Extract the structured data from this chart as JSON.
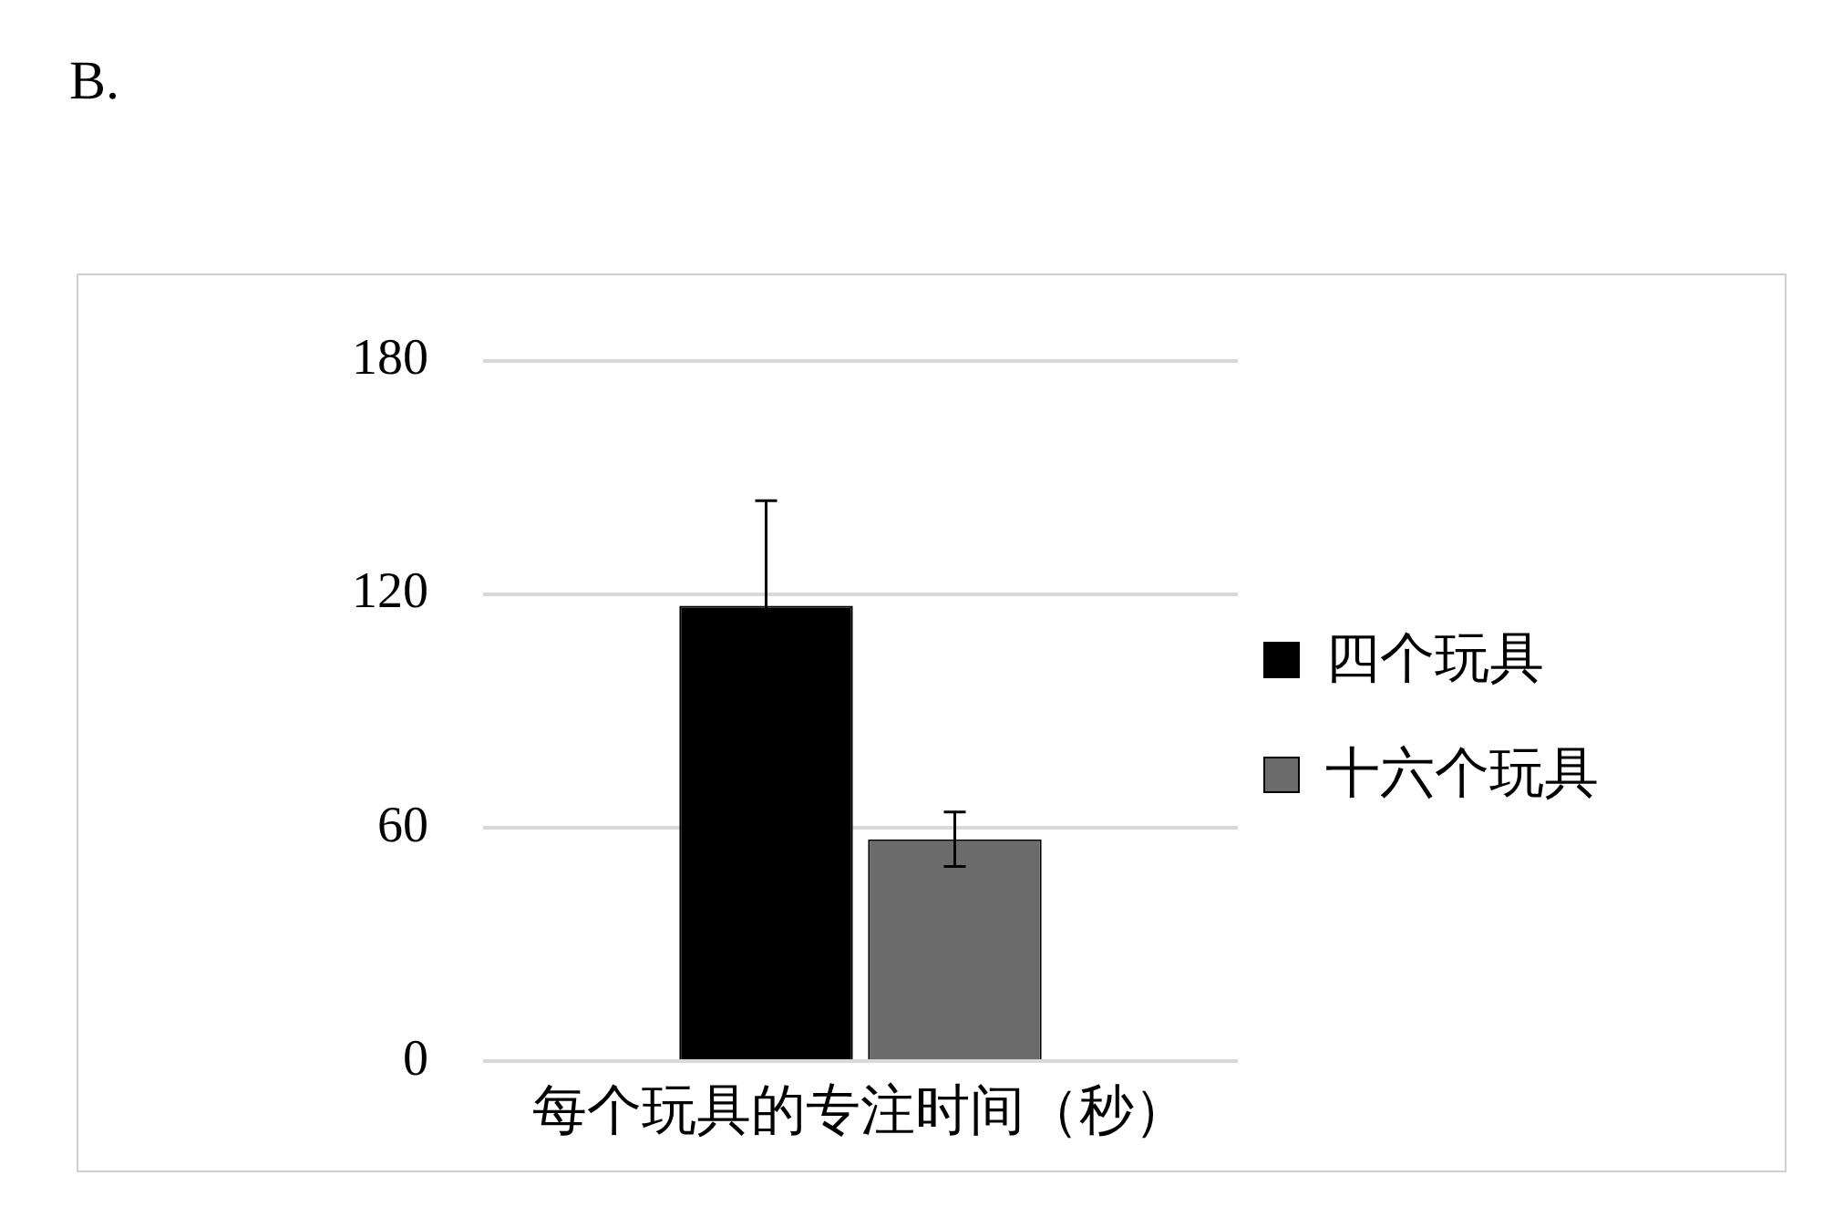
{
  "chart_data": {
    "type": "bar",
    "annotations": [
      "B."
    ],
    "categories": [
      "每个玩具的专注时间（秒）"
    ],
    "series": [
      {
        "name": "四个玩具",
        "color": "#000000",
        "values": [
          117
        ],
        "errors": [
          27
        ]
      },
      {
        "name": "十六个玩具",
        "color": "#6b6b6b",
        "values": [
          57
        ],
        "errors": [
          7
        ]
      }
    ],
    "ylim": [
      0,
      180
    ],
    "yticks": [
      0,
      60,
      120,
      180
    ],
    "grid": "y",
    "legend": "right"
  }
}
